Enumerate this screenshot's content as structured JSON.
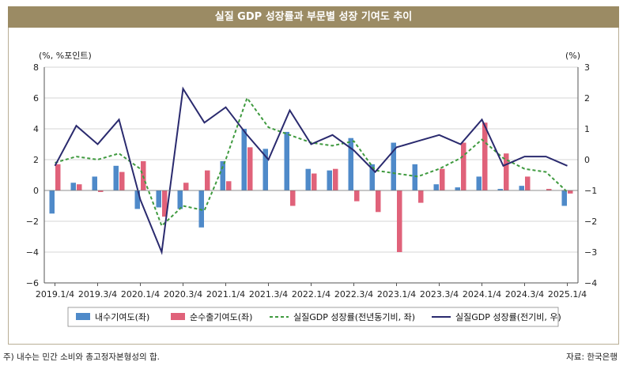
{
  "title": "실질 GDP 성장률과 부문별 성장 기여도 추이",
  "footnote": "주) 내수는 민간 소비와 총고정자본형성의 합.",
  "source": "자료: 한국은행",
  "colors": {
    "domestic": "#4f8ac9",
    "net_export": "#e0627a",
    "yoy_line": "#3f9a3f",
    "qoq_line": "#2a2a6e",
    "header": "#9b8b64"
  },
  "chart_data": {
    "type": "bar",
    "left_unit": "(%, %포인트)",
    "right_unit": "(%)",
    "left_ylim": [
      -6,
      8
    ],
    "right_ylim": [
      -4,
      3
    ],
    "left_ticks": [
      "8",
      "6",
      "4",
      "2",
      "0",
      "−2",
      "−4",
      "−6"
    ],
    "right_ticks": [
      "3",
      "2",
      "1",
      "0",
      "−1",
      "−2",
      "−3",
      "−4"
    ],
    "x_tick_labels": [
      "2019.1/4",
      "2019.3/4",
      "2020.1/4",
      "2020.3/4",
      "2021.1/4",
      "2021.3/4",
      "2022.1/4",
      "2022.3/4",
      "2023.1/4",
      "2023.3/4",
      "2024.1/4",
      "2024.3/4",
      "2025.1/4"
    ],
    "categories": [
      "2019.1/4",
      "2019.2/4",
      "2019.3/4",
      "2019.4/4",
      "2020.1/4",
      "2020.2/4",
      "2020.3/4",
      "2020.4/4",
      "2021.1/4",
      "2021.2/4",
      "2021.3/4",
      "2021.4/4",
      "2022.1/4",
      "2022.2/4",
      "2022.3/4",
      "2022.4/4",
      "2023.1/4",
      "2023.2/4",
      "2023.3/4",
      "2023.4/4",
      "2024.1/4",
      "2024.2/4",
      "2024.3/4",
      "2024.4/4",
      "2025.1/4"
    ],
    "series": [
      {
        "name": "내수기여도(좌)",
        "type": "bar",
        "axis": "left",
        "values": [
          -1.5,
          0.5,
          0.9,
          1.6,
          -1.2,
          -1.1,
          -1.2,
          -2.4,
          1.9,
          4.0,
          2.7,
          3.8,
          1.4,
          1.3,
          3.4,
          1.7,
          3.1,
          1.7,
          0.4,
          0.2,
          0.9,
          0.1,
          0.3,
          0.0,
          -1.0
        ]
      },
      {
        "name": "순수출기여도(좌)",
        "type": "bar",
        "axis": "left",
        "values": [
          1.7,
          0.4,
          -0.1,
          1.2,
          1.9,
          -1.7,
          0.5,
          1.3,
          0.6,
          2.8,
          0.0,
          -1.0,
          1.1,
          1.4,
          -0.7,
          -1.4,
          -4.0,
          -0.8,
          1.4,
          3.1,
          4.4,
          2.4,
          0.9,
          0.1,
          -0.2
        ]
      },
      {
        "name": "실질GDP 성장률(전년동기비, 좌)",
        "type": "line",
        "style": "dashed",
        "axis": "left",
        "values": [
          1.8,
          2.2,
          2.0,
          2.4,
          1.4,
          -2.3,
          -1.0,
          -1.3,
          2.0,
          6.0,
          4.1,
          3.6,
          3.1,
          2.9,
          3.2,
          1.3,
          1.1,
          0.9,
          1.4,
          2.1,
          3.3,
          2.1,
          1.4,
          1.2,
          -0.1
        ]
      },
      {
        "name": "실질GDP 성장률(전기비, 우)",
        "type": "line",
        "axis": "right",
        "values": [
          -0.2,
          1.1,
          0.5,
          1.3,
          -1.3,
          -3.0,
          2.3,
          1.2,
          1.7,
          0.8,
          0.0,
          1.6,
          0.5,
          0.8,
          0.3,
          -0.4,
          0.4,
          0.6,
          0.8,
          0.5,
          1.3,
          -0.2,
          0.1,
          0.1,
          -0.2
        ]
      }
    ]
  }
}
